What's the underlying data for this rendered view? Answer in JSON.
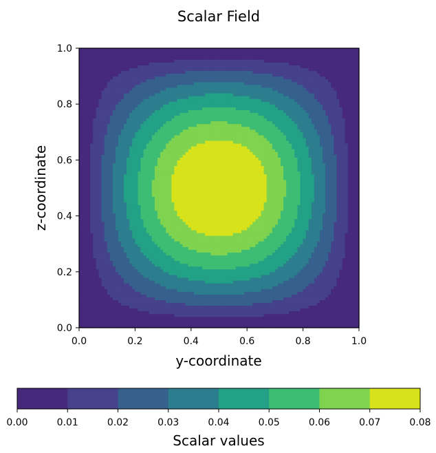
{
  "chart_data": {
    "type": "heatmap",
    "subtype": "filled-contour",
    "title": "Scalar Field",
    "xlabel": "y-coordinate",
    "ylabel": "z-coordinate",
    "xlim": [
      0.0,
      1.0
    ],
    "ylim": [
      0.0,
      1.0
    ],
    "xticks": [
      "0.0",
      "0.2",
      "0.4",
      "0.6",
      "0.8",
      "1.0"
    ],
    "yticks": [
      "0.0",
      "0.2",
      "0.4",
      "0.6",
      "0.8",
      "1.0"
    ],
    "grid": false,
    "colormap": "viridis",
    "field": "approx. 0.0816 * sin(pi*y) * sin(pi*z), max ~0.08 at (0.5, 0.5)",
    "field_peak": 0.0816,
    "levels": [
      0.0,
      0.01,
      0.02,
      0.03,
      0.04,
      0.05,
      0.06,
      0.07,
      0.08
    ],
    "level_colors": [
      "#472d7b",
      "#3b518b",
      "#2c718e",
      "#21908d",
      "#27ad81",
      "#5cc863",
      "#aadc32",
      "#fde725"
    ],
    "level_colors_rendered": [
      "#46287c",
      "#45418a",
      "#36608d",
      "#2c7e8e",
      "#22a187",
      "#3dbc74",
      "#7fd34e",
      "#d8e21b"
    ],
    "colorbar": {
      "label": "Scalar values",
      "orientation": "horizontal",
      "placement": "bottom",
      "ticks": [
        "0.00",
        "0.01",
        "0.02",
        "0.03",
        "0.04",
        "0.05",
        "0.06",
        "0.07",
        "0.08"
      ]
    }
  }
}
